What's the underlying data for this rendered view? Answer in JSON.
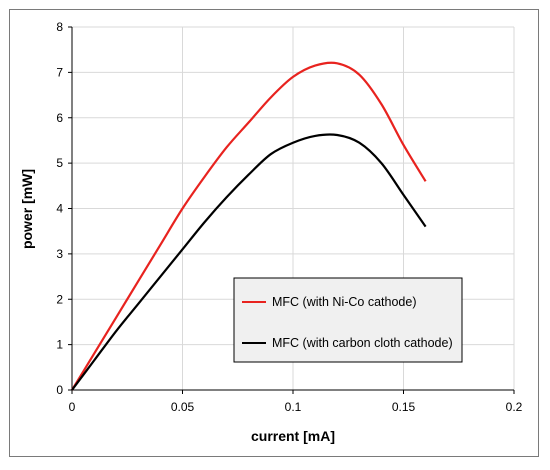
{
  "chart_data": {
    "type": "line",
    "xlabel": "current [mA]",
    "ylabel": "power [mW]",
    "xlim": [
      0,
      0.2
    ],
    "ylim": [
      0,
      8
    ],
    "xticks": [
      0,
      0.05,
      0.1,
      0.15,
      0.2
    ],
    "xtick_labels": [
      "0",
      "0.05",
      "0.1",
      "0.15",
      "0.2"
    ],
    "yticks": [
      0,
      1,
      2,
      3,
      4,
      5,
      6,
      7,
      8
    ],
    "ytick_labels": [
      "0",
      "1",
      "2",
      "3",
      "4",
      "5",
      "6",
      "7",
      "8"
    ],
    "grid": true,
    "legend_position": "lower-right",
    "series": [
      {
        "name": "MFC (with Ni-Co cathode)",
        "color": "#e8231f",
        "x": [
          0,
          0.01,
          0.02,
          0.03,
          0.04,
          0.05,
          0.06,
          0.07,
          0.08,
          0.09,
          0.1,
          0.11,
          0.12,
          0.13,
          0.14,
          0.15,
          0.16
        ],
        "y": [
          0,
          0.8,
          1.6,
          2.4,
          3.2,
          4.0,
          4.7,
          5.35,
          5.9,
          6.45,
          6.9,
          7.15,
          7.2,
          6.95,
          6.3,
          5.4,
          4.6
        ]
      },
      {
        "name": "MFC (with carbon cloth cathode)",
        "color": "#000000",
        "x": [
          0,
          0.01,
          0.02,
          0.03,
          0.04,
          0.05,
          0.06,
          0.07,
          0.08,
          0.09,
          0.1,
          0.11,
          0.12,
          0.13,
          0.14,
          0.15,
          0.16
        ],
        "y": [
          0,
          0.65,
          1.3,
          1.9,
          2.5,
          3.1,
          3.7,
          4.25,
          4.75,
          5.2,
          5.45,
          5.6,
          5.62,
          5.45,
          5.0,
          4.3,
          3.6
        ]
      }
    ]
  }
}
